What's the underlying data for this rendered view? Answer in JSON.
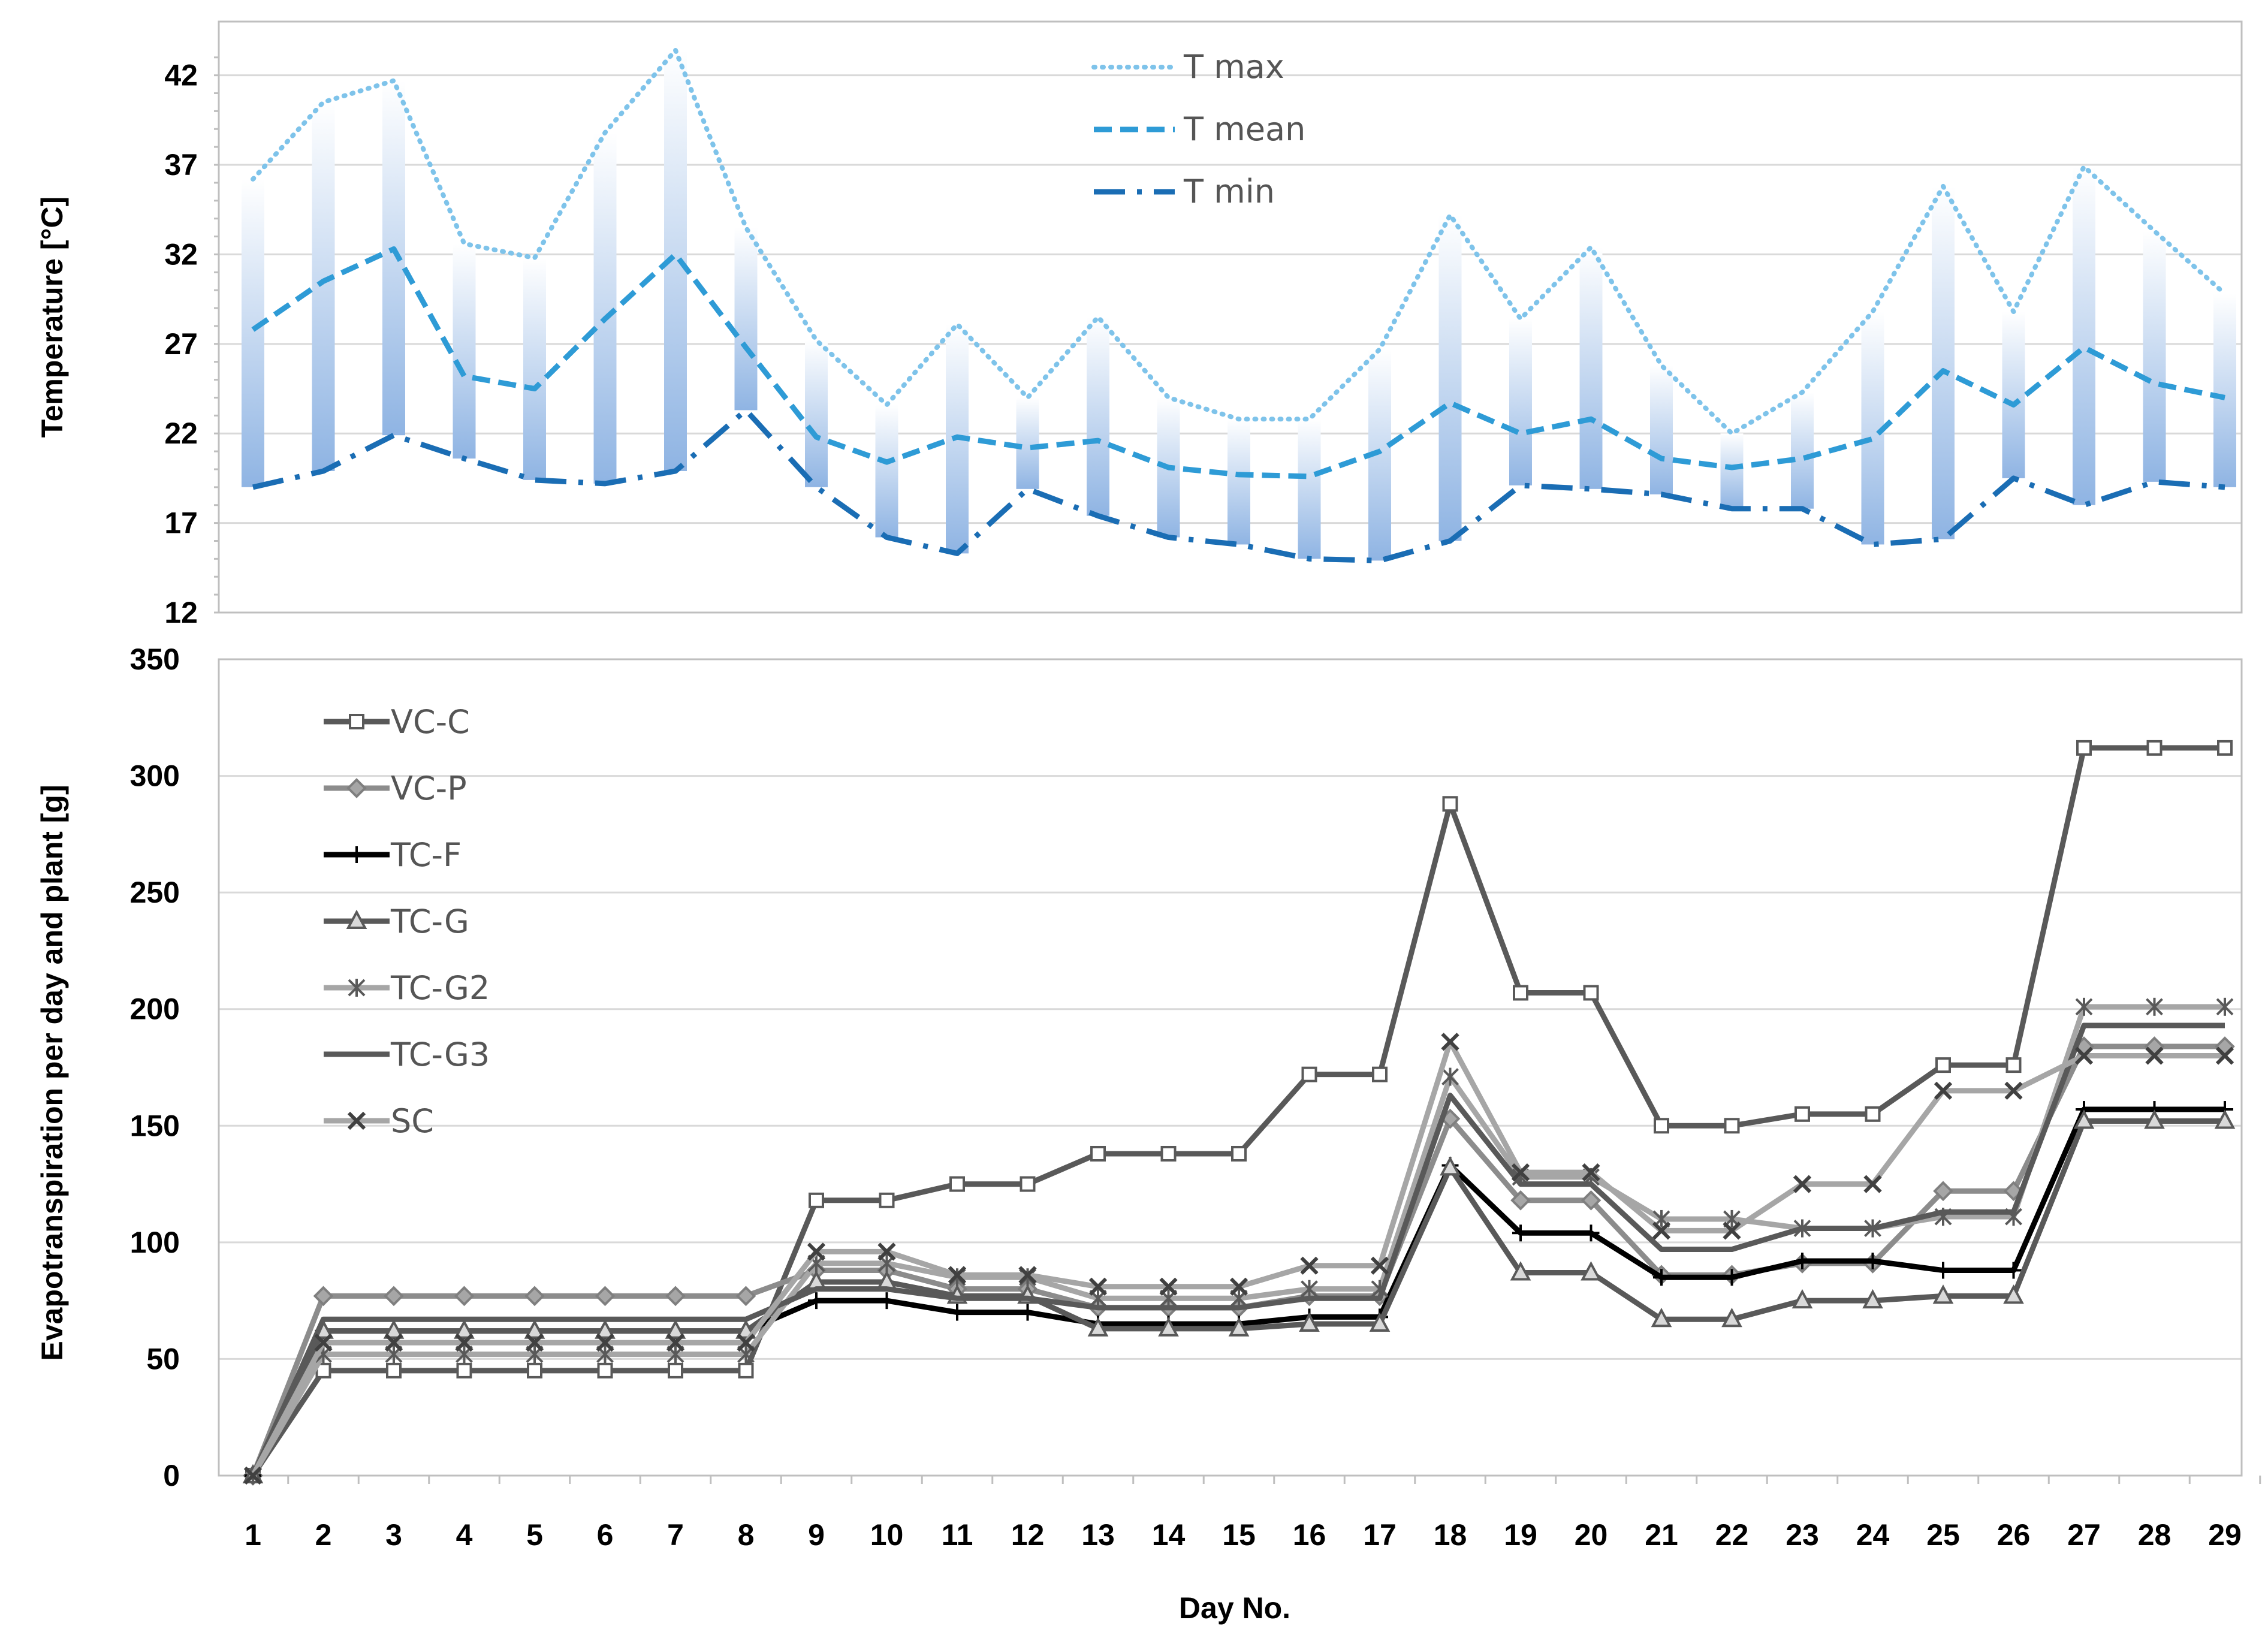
{
  "chart_data": [
    {
      "type": "line",
      "title": "",
      "ylabel": "Temperature [°C]",
      "xlabel": "",
      "ylim": [
        12,
        45
      ],
      "yticks": [
        12,
        17,
        22,
        27,
        32,
        37,
        42
      ],
      "x": [
        1,
        2,
        3,
        4,
        5,
        6,
        7,
        8,
        9,
        10,
        11,
        12,
        13,
        14,
        15,
        16,
        17,
        18,
        19,
        20,
        21,
        22,
        23,
        24,
        25,
        26,
        27,
        28,
        29
      ],
      "legend_position": "top-center",
      "range_bars": "vertical gradient bars from T min to T max for each day",
      "series": [
        {
          "name": "T max",
          "color": "#7ec3ea",
          "style": "dotted",
          "values": [
            36.2,
            40.5,
            41.7,
            32.6,
            31.8,
            38.8,
            43.4,
            33.5,
            27.2,
            23.6,
            28.1,
            24.0,
            28.5,
            24.0,
            22.8,
            22.8,
            26.7,
            34.2,
            28.4,
            32.4,
            25.8,
            22.0,
            24.3,
            28.8,
            35.8,
            28.8,
            36.9,
            33.3,
            29.8
          ]
        },
        {
          "name": "T mean",
          "color": "#2e9bd6",
          "style": "dashed",
          "values": [
            27.8,
            30.5,
            32.3,
            25.2,
            24.5,
            28.4,
            32.0,
            26.8,
            21.8,
            20.4,
            21.8,
            21.2,
            21.6,
            20.1,
            19.7,
            19.6,
            21.0,
            23.7,
            22.0,
            22.8,
            20.6,
            20.1,
            20.6,
            21.7,
            25.5,
            23.6,
            26.8,
            24.8,
            24.0
          ]
        },
        {
          "name": "T min",
          "color": "#1a6db4",
          "style": "dash-dot",
          "values": [
            19.0,
            19.9,
            21.9,
            20.6,
            19.4,
            19.2,
            19.9,
            23.3,
            19.0,
            16.2,
            15.3,
            18.9,
            17.4,
            16.2,
            15.8,
            15.0,
            14.9,
            16.0,
            19.1,
            18.9,
            18.6,
            17.8,
            17.8,
            15.8,
            16.1,
            19.5,
            18.0,
            19.3,
            19.0
          ]
        }
      ]
    },
    {
      "type": "line",
      "title": "",
      "ylabel": "Evapotranspiration per day and plant [g]",
      "xlabel": "Day No.",
      "ylim": [
        0,
        350
      ],
      "yticks": [
        0,
        50,
        100,
        150,
        200,
        250,
        300,
        350
      ],
      "x": [
        1,
        2,
        3,
        4,
        5,
        6,
        7,
        8,
        9,
        10,
        11,
        12,
        13,
        14,
        15,
        16,
        17,
        18,
        19,
        20,
        21,
        22,
        23,
        24,
        25,
        26,
        27,
        28,
        29
      ],
      "legend_position": "top-left",
      "series": [
        {
          "name": "VC-C",
          "color": "#595959",
          "marker": "square",
          "values": [
            0,
            45,
            45,
            45,
            45,
            45,
            45,
            45,
            118,
            118,
            125,
            125,
            138,
            138,
            138,
            172,
            172,
            288,
            207,
            207,
            150,
            150,
            155,
            155,
            176,
            176,
            312,
            312,
            312
          ]
        },
        {
          "name": "VC-P",
          "color": "#8c8c8c",
          "marker": "diamond",
          "values": [
            0,
            77,
            77,
            77,
            77,
            77,
            77,
            77,
            88,
            88,
            80,
            80,
            72,
            72,
            72,
            77,
            77,
            153,
            118,
            118,
            86,
            86,
            91,
            91,
            122,
            122,
            184,
            184,
            184
          ]
        },
        {
          "name": "TC-F",
          "color": "#000000",
          "marker": "plus",
          "values": [
            0,
            62,
            62,
            62,
            62,
            62,
            62,
            62,
            75,
            75,
            70,
            70,
            65,
            65,
            65,
            68,
            68,
            133,
            104,
            104,
            85,
            85,
            92,
            92,
            88,
            88,
            157,
            157,
            157
          ]
        },
        {
          "name": "TC-G",
          "color": "#595959",
          "marker": "triangle",
          "values": [
            0,
            62,
            62,
            62,
            62,
            62,
            62,
            62,
            83,
            83,
            77,
            77,
            63,
            63,
            63,
            65,
            65,
            132,
            87,
            87,
            67,
            67,
            75,
            75,
            77,
            77,
            152,
            152,
            152
          ]
        },
        {
          "name": "TC-G2",
          "color": "#a6a6a6",
          "marker": "asterisk",
          "values": [
            0,
            52,
            52,
            52,
            52,
            52,
            52,
            52,
            91,
            91,
            85,
            85,
            76,
            76,
            76,
            80,
            80,
            171,
            128,
            128,
            110,
            110,
            106,
            106,
            111,
            111,
            201,
            201,
            201
          ]
        },
        {
          "name": "TC-G3",
          "color": "#595959",
          "marker": "none",
          "values": [
            0,
            67,
            67,
            67,
            67,
            67,
            67,
            67,
            80,
            80,
            76,
            76,
            72,
            72,
            72,
            76,
            76,
            163,
            125,
            125,
            97,
            97,
            106,
            106,
            113,
            113,
            193,
            193,
            193
          ]
        },
        {
          "name": "SC",
          "color": "#a6a6a6",
          "marker": "x",
          "values": [
            0,
            57,
            57,
            57,
            57,
            57,
            57,
            57,
            96,
            96,
            86,
            86,
            81,
            81,
            81,
            90,
            90,
            186,
            130,
            130,
            105,
            105,
            125,
            125,
            165,
            165,
            180,
            180,
            180
          ]
        }
      ]
    }
  ]
}
